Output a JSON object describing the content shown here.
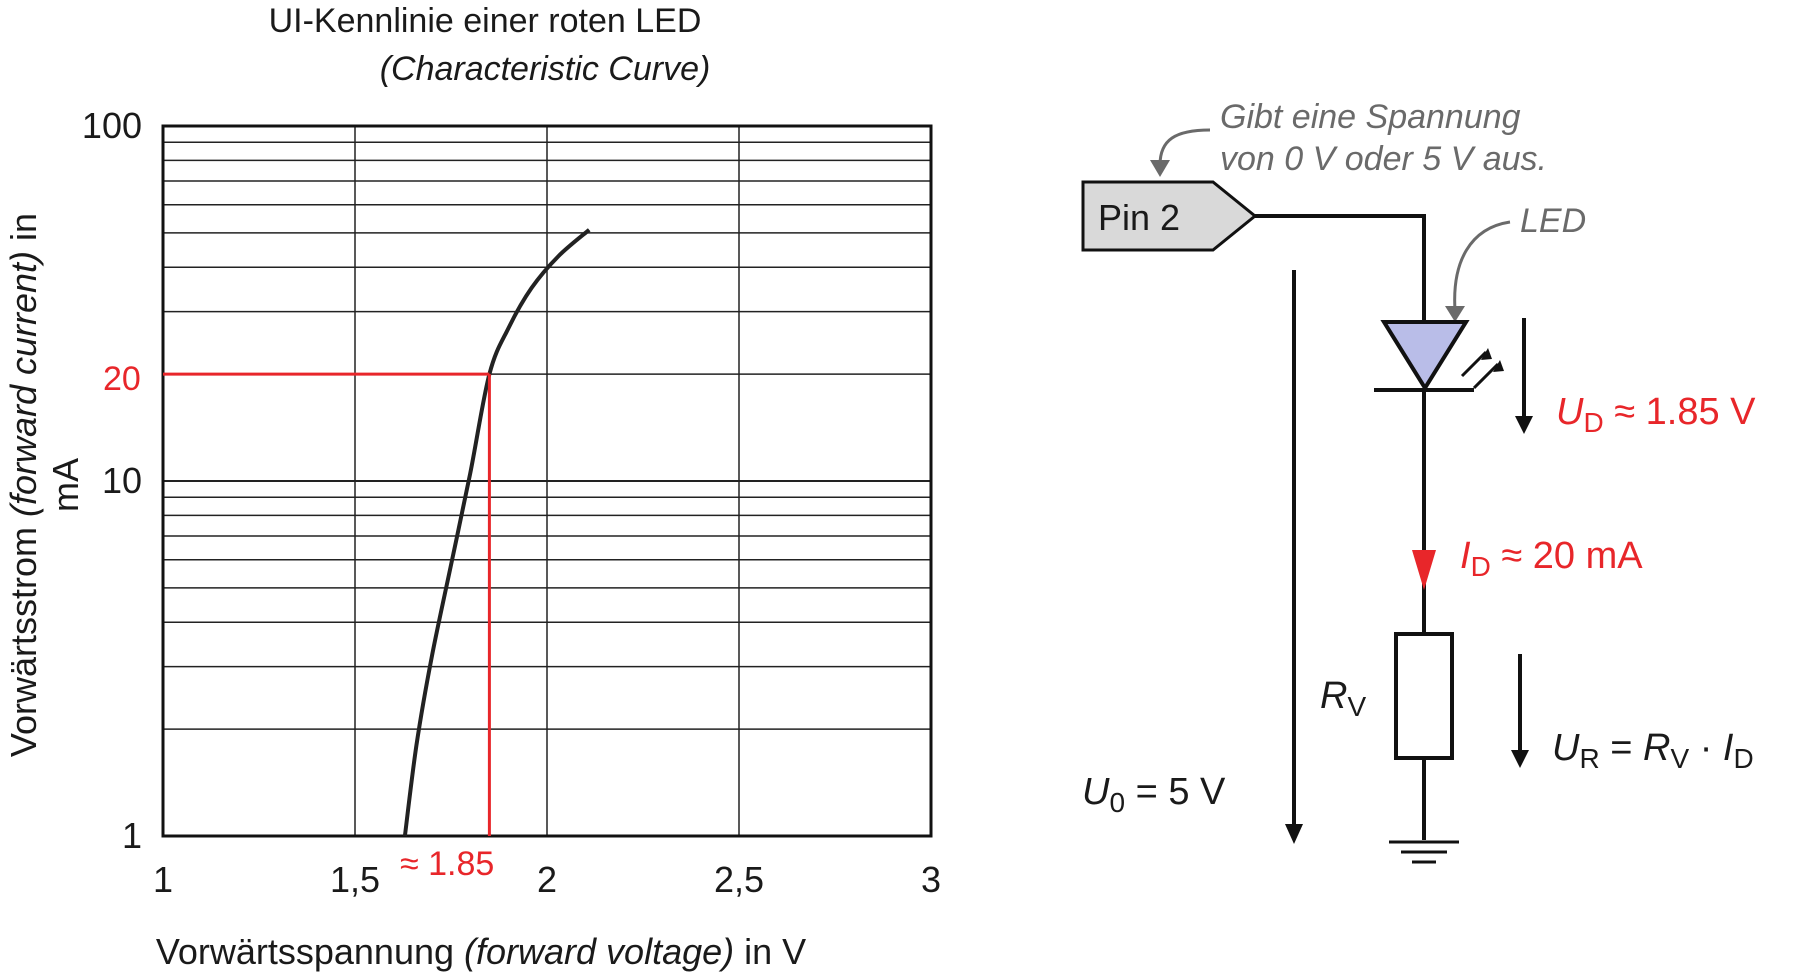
{
  "chart": {
    "title": "UI-Kennlinie einer roten LED",
    "subtitle": "(Characteristic Curve)",
    "xlabel": {
      "main": "Vorwärtsspannung ",
      "italic": "(forward voltage)",
      "unit": " in V"
    },
    "ylabel": {
      "main": "Vorwärtsstrom ",
      "italic": "(forward current)",
      "in": " in",
      "unit": "mA"
    },
    "x_ticks": [
      "1",
      "1,5",
      "2",
      "2,5",
      "3"
    ],
    "y_ticks": [
      "1",
      "10",
      "100"
    ],
    "marker": {
      "x_label": "≈ 1.85",
      "y_label": "20",
      "color": "#e8262a"
    }
  },
  "chart_data": {
    "type": "line",
    "title": "UI-Kennlinie einer roten LED",
    "subtitle": "(Characteristic Curve)",
    "xlabel": "Vorwärtsspannung (forward voltage) in V",
    "ylabel": "Vorwärtsstrom (forward current) in mA",
    "xlim": [
      1,
      3
    ],
    "ylim": [
      1,
      100
    ],
    "y_scale": "log",
    "grid": true,
    "x": [
      1.63,
      1.66,
      1.7,
      1.75,
      1.8,
      1.85,
      1.9,
      1.96,
      2.03,
      2.11
    ],
    "y": [
      1,
      1.8,
      3.2,
      5.8,
      10.5,
      20,
      27,
      35,
      43,
      51
    ],
    "marker_point": {
      "x": 1.85,
      "y": 20
    }
  },
  "circuit": {
    "pin_label": "Pin 2",
    "pin_note_line1": "Gibt eine Spannung",
    "pin_note_line2": "von 0 V oder 5 V aus.",
    "led_label": "LED",
    "ud": {
      "sym": "U",
      "sub": "D",
      "rest": " ≈ 1.85 V"
    },
    "id": {
      "sym": "I",
      "sub": "D",
      "rest": " ≈ 20 mA"
    },
    "rv": {
      "sym": "R",
      "sub": "V"
    },
    "ur": {
      "sym": "U",
      "sub": "R",
      "eq": " = ",
      "sym2": "R",
      "sub2": "V",
      "dot": " · ",
      "sym3": "I",
      "sub3": "D"
    },
    "u0": {
      "sym": "U",
      "sub": "0",
      "rest": " = 5 V"
    },
    "colors": {
      "red": "#e8262a",
      "led_fill": "#b9bde8",
      "pin_fill": "#d9d9d9"
    }
  }
}
